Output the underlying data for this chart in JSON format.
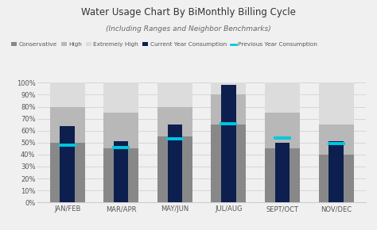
{
  "title": "Water Usage Chart By BiMonthly Billing Cycle",
  "subtitle": "(Including Ranges and Neighbor Benchmarks)",
  "categories": [
    "JAN/FEB",
    "MAR/APR",
    "MAY/JUN",
    "JUL/AUG",
    "SEPT/OCT",
    "NOV/DEC"
  ],
  "conservative": [
    50,
    45,
    55,
    65,
    45,
    40
  ],
  "high": [
    80,
    75,
    80,
    90,
    75,
    65
  ],
  "extremely_high": [
    100,
    100,
    100,
    100,
    100,
    100
  ],
  "current_year": [
    64,
    51,
    65,
    98,
    50,
    51
  ],
  "previous_year": [
    48,
    46,
    53,
    66,
    54,
    49
  ],
  "color_conservative": "#888888",
  "color_high": "#b8b8b8",
  "color_extremely_high": "#dcdcdc",
  "color_current_year": "#0d1f4e",
  "color_prev_year": "#00c8e0",
  "background_color": "#f0f0f0",
  "plot_bg_color": "#f0f0f0",
  "ylim": [
    0,
    100
  ],
  "yticks": [
    0,
    10,
    20,
    30,
    40,
    50,
    60,
    70,
    80,
    90,
    100
  ],
  "ytick_labels": [
    "0%",
    "10%",
    "20%",
    "30%",
    "40%",
    "50%",
    "60%",
    "70%",
    "80%",
    "90%",
    "100%"
  ]
}
